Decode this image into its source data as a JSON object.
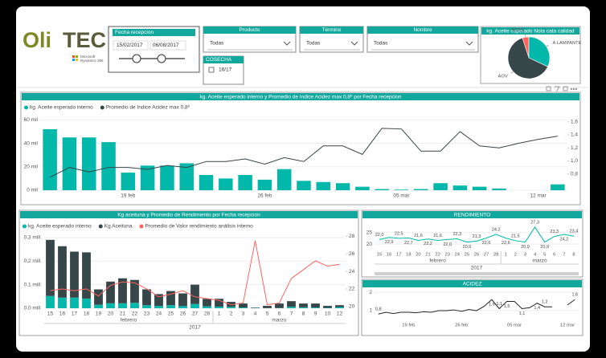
{
  "header": {
    "logo_left": "Oli",
    "logo_right": "TEC",
    "logo_sub_1": "Microsoft",
    "logo_sub_2": "Dynamics 365"
  },
  "slicers": {
    "fecha": {
      "title": "Fecha recepcion",
      "from": "15/02/2017",
      "to": "06/08/2017"
    },
    "producto": {
      "title": "Producto",
      "value": "Todas"
    },
    "termino": {
      "title": "Término",
      "value": "Todas"
    },
    "nombre": {
      "title": "Nombre",
      "value": "Todas"
    },
    "cosecha": {
      "title": "COSECHA",
      "option": "16/17"
    }
  },
  "chart_data": [
    {
      "type": "combo",
      "title": "kg. Aceite esperado interno y Promedio de Indice Acidez max 0,8º por Fecha recepcion",
      "categories": [
        null,
        null,
        null,
        null,
        "19 feb",
        null,
        null,
        null,
        null,
        null,
        null,
        "26 feb",
        null,
        null,
        null,
        null,
        null,
        null,
        "05 mar",
        null,
        null,
        null,
        null,
        null,
        null,
        "12 mar",
        null
      ],
      "series": [
        {
          "name": "kg. Aceite esperado interno",
          "color": "#01b8aa",
          "kind": "bar",
          "values": [
            52000,
            45000,
            45000,
            41000,
            15000,
            21000,
            21000,
            23000,
            13000,
            10000,
            13000,
            9000,
            18000,
            8000,
            7000,
            6000,
            3000,
            1000,
            500,
            1000,
            6000,
            4000,
            3000,
            1500,
            null,
            null,
            5000
          ]
        },
        {
          "name": "Promedio de Indice Acidez max 0,8º",
          "color": "#374649",
          "kind": "line",
          "axis": "y2",
          "values": [
            0.75,
            0.9,
            0.83,
            0.9,
            0.9,
            0.87,
            0.93,
            0.9,
            0.99,
            0.99,
            1.03,
            0.95,
            1.05,
            0.99,
            1.23,
            1.23,
            1.1,
            1.5,
            1.49,
            1.15,
            1.15,
            1.45,
            1.23,
            1.2,
            1.27,
            1.33,
            1.38
          ]
        }
      ],
      "ylim": [
        0,
        65000
      ],
      "yticks": [
        {
          "value": 0,
          "label": "0 mil"
        },
        {
          "value": 20000,
          "label": "20 mil"
        },
        {
          "value": 40000,
          "label": "40 mil"
        },
        {
          "value": 60000,
          "label": "60 mil"
        }
      ],
      "y2lim": [
        0.55,
        1.72
      ],
      "y2ticks": [
        {
          "value": 0.8,
          "label": "0,8"
        },
        {
          "value": 1.0,
          "label": "1,0"
        },
        {
          "value": 1.2,
          "label": "1,2"
        },
        {
          "value": 1.4,
          "label": "1,4"
        },
        {
          "value": 1.6,
          "label": "1,6"
        }
      ]
    },
    {
      "type": "combo",
      "title": "Kg aceituna y Promedio de Rendimiento por Fecha recepcion",
      "stacked": true,
      "categories": [
        "15",
        "16",
        "17",
        "18",
        "19",
        "20",
        "21",
        "22",
        "23",
        "24",
        "25",
        "26",
        "27",
        "28",
        "1",
        "2",
        "3",
        "4",
        "5",
        "6",
        "7",
        "8",
        "9",
        "10",
        "12"
      ],
      "x_groups": [
        "febrero",
        "marzo"
      ],
      "x_super": "2017",
      "series": [
        {
          "name": "kg. Aceite esperado interno",
          "color": "#01b8aa",
          "kind": "bar",
          "values": [
            52000,
            45000,
            45000,
            41000,
            15000,
            21000,
            21000,
            23000,
            13000,
            10000,
            13000,
            9000,
            18000,
            8000,
            7000,
            6000,
            3000,
            1000,
            500,
            1000,
            6000,
            4000,
            3000,
            1500,
            5000
          ]
        },
        {
          "name": "Kg Aceituna",
          "color": "#374649",
          "kind": "bar",
          "values": [
            238000,
            218000,
            195000,
            196000,
            65000,
            92000,
            106000,
            97000,
            67000,
            50000,
            60000,
            54000,
            82000,
            32000,
            33000,
            21000,
            17000,
            2000,
            9500,
            19000,
            24000,
            16000,
            17000,
            8500,
            8000
          ]
        },
        {
          "name": "Promedio de Valor rendimiento análisis interno",
          "color": "#fd625e",
          "kind": "line",
          "axis": "y2",
          "values": [
            21.8,
            22,
            21.8,
            22,
            21.2,
            22.4,
            22.8,
            22.7,
            22,
            21.1,
            21.4,
            21.8,
            21.1,
            20.9,
            20.7,
            20.2,
            20.4,
            27.5,
            20.2,
            20.4,
            23.2,
            24.2,
            25.2,
            24.6,
            24.8
          ]
        }
      ],
      "ylim": [
        0,
        320000
      ],
      "yticks": [
        {
          "value": 0,
          "label": "0,0 mill."
        },
        {
          "value": 100000,
          "label": "0,1 mill."
        },
        {
          "value": 200000,
          "label": "0,2 mill."
        },
        {
          "value": 300000,
          "label": "0,3 mill."
        }
      ],
      "y2lim": [
        19.8,
        28.4
      ],
      "y2ticks": [
        20,
        22,
        24,
        26,
        28
      ]
    },
    {
      "type": "line",
      "title": "RENDIMIENTO",
      "color": "#01b8aa",
      "categories": [
        "15",
        "16",
        "17",
        "18",
        "20",
        "21",
        "22",
        "23",
        "24",
        "25",
        "26",
        "27",
        "28",
        "1",
        "2",
        "3",
        "4",
        "5",
        "6",
        "7",
        "8"
      ],
      "x_groups": [
        "febrero",
        "marzo"
      ],
      "x_super": "2017",
      "values": [
        22.0,
        22.9,
        22.5,
        22.7,
        21.6,
        22.2,
        21.6,
        22.0,
        22.3,
        20.9,
        21.3,
        22.6,
        24.2,
        22.6,
        21.5,
        20.9,
        27.3,
        20.9,
        23.3,
        24.2,
        23.4
      ],
      "value_labels": [
        "22,0",
        "22,9",
        "22,5",
        "22,7",
        "21,6",
        "22,2",
        "21,6",
        "22,0",
        "22,3",
        "20,9",
        "21,3",
        "22,6",
        "24,2",
        "22,6",
        "21,5",
        "20,9",
        "27,3",
        "20,9",
        "23,3",
        "24,2",
        "23,4"
      ],
      "ylim": [
        18,
        29
      ],
      "yticks": [
        20,
        25
      ]
    },
    {
      "type": "line",
      "title": "ACIDEZ",
      "color": "#252423",
      "categories": [
        null,
        null,
        null,
        null,
        "19 feb",
        null,
        null,
        null,
        null,
        null,
        null,
        "26 feb",
        null,
        null,
        null,
        null,
        null,
        null,
        "05 mar",
        null,
        null,
        null,
        null,
        null,
        null,
        "12 mar",
        null
      ],
      "values": [
        0.8,
        0.9,
        0.83,
        0.9,
        0.9,
        0.87,
        0.93,
        0.9,
        0.99,
        0.99,
        1.03,
        0.95,
        1.05,
        0.99,
        1.23,
        1.6,
        1.1,
        1.5,
        1.5,
        1.1,
        1.15,
        1.4,
        1.2,
        1.2,
        null,
        1.3,
        1.6
      ],
      "value_labels": [
        "0,8",
        null,
        null,
        null,
        null,
        null,
        null,
        null,
        null,
        null,
        null,
        null,
        null,
        null,
        null,
        "1,6",
        "1,1",
        "1,5",
        null,
        "1,1",
        null,
        "1,4",
        "1,2",
        null,
        null,
        null,
        "1,6"
      ],
      "ylim": [
        0.5,
        2.1
      ],
      "yticks": [
        1,
        2
      ]
    },
    {
      "type": "pie",
      "title": "kg. Aceite esperado Nota cata calidad",
      "categories": [
        "AOVE",
        "A LAMPANTE",
        "AOV"
      ],
      "values": [
        5,
        32,
        63
      ],
      "colors": [
        "#fd625e",
        "#01b8aa",
        "#374649"
      ]
    }
  ]
}
